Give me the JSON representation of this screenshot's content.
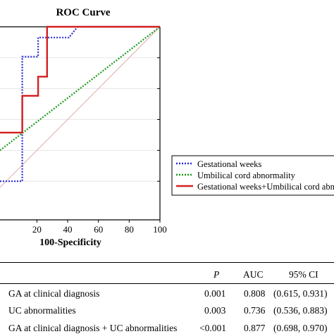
{
  "chart_data": {
    "type": "line",
    "title": "ROC Curve",
    "xlabel": "100-Specificity",
    "ylabel": "",
    "xlim": [
      -4,
      100
    ],
    "ylim": [
      -25,
      100
    ],
    "x_ticks": [
      "20",
      "40",
      "60",
      "80",
      "100"
    ],
    "x_tick_values": [
      20,
      40,
      60,
      80,
      100
    ],
    "series": [
      {
        "name": "Gestational weeks",
        "color": "#2a2ad6",
        "style": "dotted",
        "x": [
          -4,
          10.5,
          10.5,
          20.8,
          20.8,
          40.8,
          46.5,
          100
        ],
        "y": [
          0,
          0,
          80.6,
          80.6,
          93,
          93,
          100,
          100
        ]
      },
      {
        "name": "Umbilical cord abnormality",
        "color": "#1a9a1a",
        "style": "dotted",
        "x": [
          -4,
          100
        ],
        "y": [
          20,
          100
        ]
      },
      {
        "name": "Gestational weeks+Umbilical cord abnormality",
        "color": "#d42020",
        "style": "solid",
        "x": [
          -4,
          10.5,
          10.5,
          20.8,
          20.8,
          26.6,
          26.6,
          100
        ],
        "y": [
          31.5,
          31.5,
          55.3,
          55.3,
          67.7,
          67.7,
          100,
          100
        ]
      },
      {
        "name": "",
        "color": "#d9b0a8",
        "style": "solid",
        "x": [
          -4,
          100
        ],
        "y": [
          -4,
          100
        ]
      }
    ],
    "grid": "horizontal",
    "legend": "right"
  },
  "table": {
    "header": [
      "P",
      "AUC",
      "95% CI"
    ],
    "rows": [
      {
        "label": "GA at clinical diagnosis",
        "p": "0.001",
        "auc": "0.808",
        "ci": "(0.615, 0.931)"
      },
      {
        "label": "UC abnormalities",
        "p": "0.003",
        "auc": "0.736",
        "ci": "(0.536, 0.883)"
      },
      {
        "label": "GA at clinical diagnosis + UC abnormalities",
        "p": "<0.001",
        "auc": "0.877",
        "ci": "(0.698, 0.970)"
      }
    ]
  }
}
